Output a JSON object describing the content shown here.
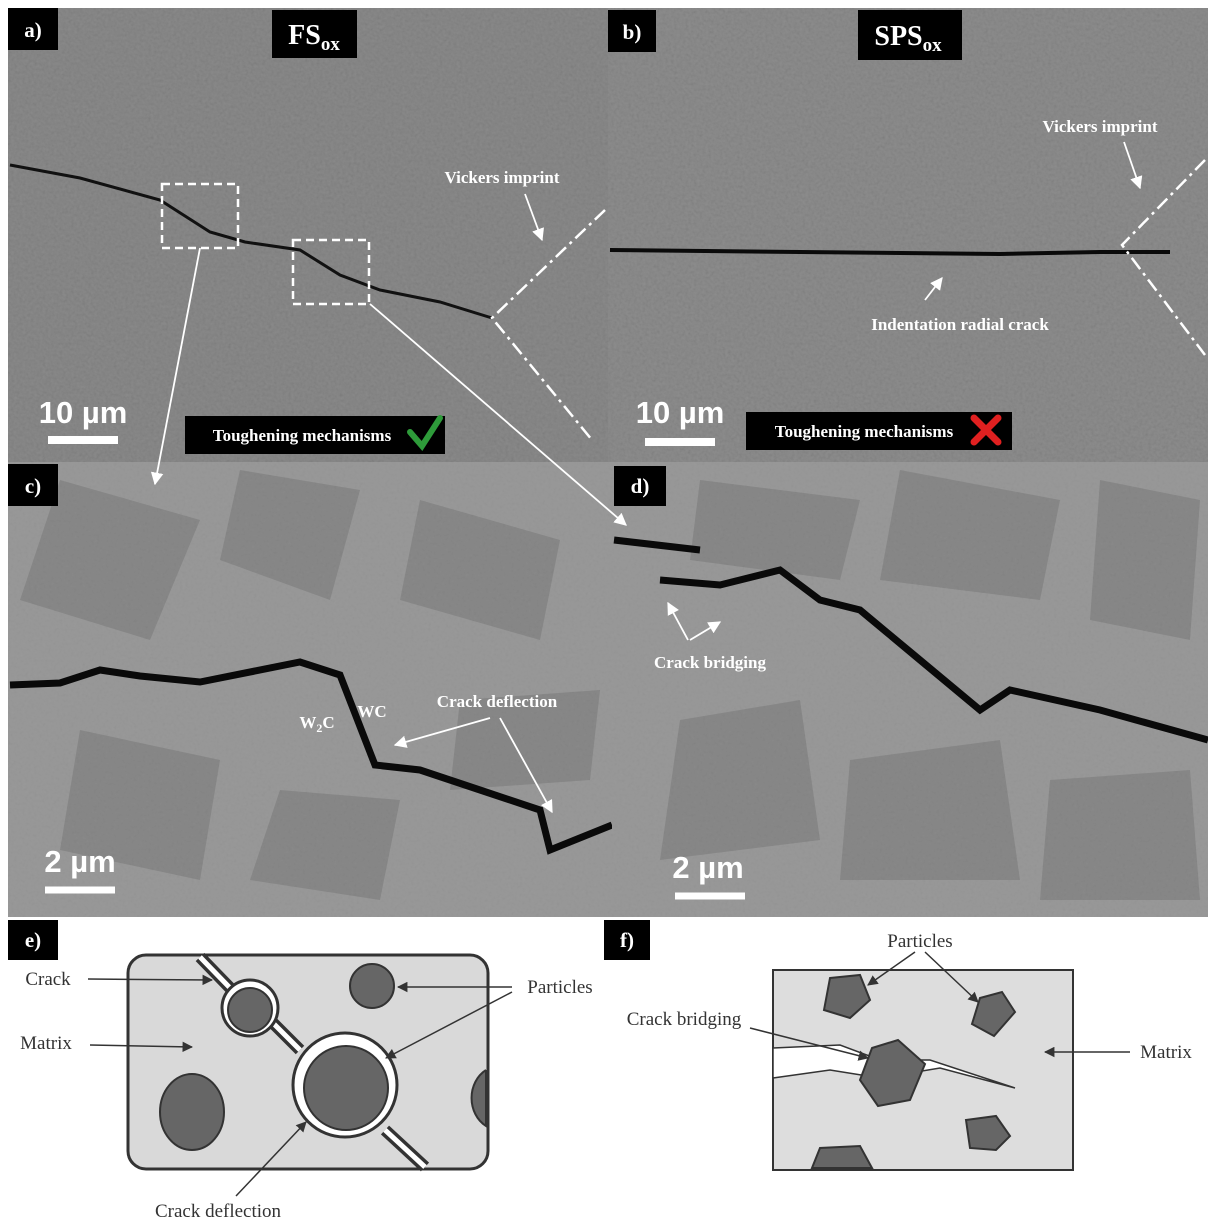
{
  "panels": {
    "a": {
      "label": "a)",
      "title": {
        "main": "FS",
        "sub": "ox"
      },
      "annotation": "Vickers imprint",
      "scale": "10 µm",
      "badge": "Toughening mechanisms"
    },
    "b": {
      "label": "b)",
      "title": {
        "main": "SPS",
        "sub": "ox"
      },
      "annotations": [
        "Vickers imprint",
        "Indentation radial crack"
      ],
      "scale": "10 µm",
      "badge": "Toughening mechanisms"
    },
    "c": {
      "label": "c)",
      "w2c": {
        "main": "W",
        "sub": "2",
        "rest": "C"
      },
      "wc": "WC",
      "annotation": "Crack deflection",
      "scale": "2 µm"
    },
    "d": {
      "label": "d)",
      "annotation": "Crack bridging",
      "scale": "2 µm"
    },
    "e": {
      "label": "e)",
      "labels": [
        "Crack",
        "Matrix",
        "Particles",
        "Crack deflection"
      ]
    },
    "f": {
      "label": "f)",
      "labels": [
        "Particles",
        "Crack bridging",
        "Matrix"
      ]
    }
  }
}
